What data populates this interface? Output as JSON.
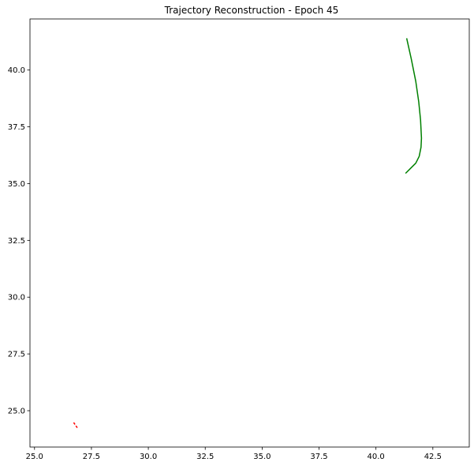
{
  "chart_data": {
    "type": "line",
    "title": "Trajectory Reconstruction - Epoch 45",
    "xlabel": "",
    "ylabel": "",
    "xlim": [
      24.8,
      44.1
    ],
    "ylim": [
      23.4,
      42.25
    ],
    "grid": false,
    "x_ticks": [
      25.0,
      27.5,
      30.0,
      32.5,
      35.0,
      37.5,
      40.0,
      42.5
    ],
    "x_tick_labels": [
      "25.0",
      "27.5",
      "30.0",
      "32.5",
      "35.0",
      "37.5",
      "40.0",
      "42.5"
    ],
    "y_ticks": [
      25.0,
      27.5,
      30.0,
      32.5,
      35.0,
      37.5,
      40.0
    ],
    "y_tick_labels": [
      "25.0",
      "27.5",
      "30.0",
      "32.5",
      "35.0",
      "37.5",
      "40.0"
    ],
    "series": [
      {
        "color": "#008000",
        "linestyle": "solid",
        "x": [
          41.35,
          41.55,
          41.75,
          41.88,
          41.96,
          42.0,
          41.98,
          41.9,
          41.75,
          41.55,
          41.3
        ],
        "y": [
          41.4,
          40.5,
          39.5,
          38.6,
          37.8,
          37.0,
          36.6,
          36.2,
          35.9,
          35.7,
          35.45
        ]
      },
      {
        "color": "#ff0000",
        "linestyle": "dashed",
        "x": [
          26.72,
          26.8,
          26.88
        ],
        "y": [
          24.48,
          24.36,
          24.25
        ]
      }
    ]
  }
}
